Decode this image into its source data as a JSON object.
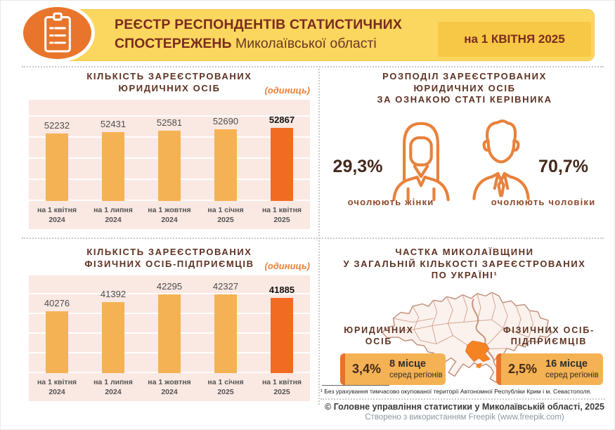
{
  "header": {
    "title_line1": "РЕЄСТР РЕСПОНДЕНТІВ СТАТИСТИЧНИХ",
    "title_line2_bold": "СПОСТЕРЕЖЕНЬ",
    "title_line2_rest": " Миколаївської області",
    "date_badge": "на 1 КВІТНЯ 2025"
  },
  "colors": {
    "banner_yellow": "#FCD75F",
    "badge_yellow": "#F7C845",
    "accent_orange": "#E8752B",
    "bar_orange": "#F5B254",
    "bar_highlight": "#F26B22",
    "panel_pink": "#FAE8E2",
    "title_brown": "#5E3222",
    "maroon": "#7B2B1E"
  },
  "chart_data": [
    {
      "type": "bar",
      "title": "КІЛЬКІСТЬ ЗАРЕЄСТРОВАНИХ ЮРИДИЧНИХ ОСІБ",
      "title_lines": [
        "КІЛЬКІСТЬ ЗАРЕЄСТРОВАНИХ",
        "ЮРИДИЧНИХ ОСІБ"
      ],
      "unit_label": "(одиниць)",
      "xlabel": "",
      "ylabel": "одиниць",
      "categories": [
        "на 1 квітня 2024",
        "на 1 липня 2024",
        "на 1 жовтня 2024",
        "на 1 січня 2025",
        "на 1 квітня 2025"
      ],
      "values": [
        52232,
        52431,
        52581,
        52690,
        52867
      ],
      "highlight_index": 4,
      "bar_color": "#F5B254",
      "highlight_color": "#F26B22",
      "grid": true,
      "legend_position": "none"
    },
    {
      "type": "bar",
      "title": "КІЛЬКІСТЬ ЗАРЕЄСТРОВАНИХ ФІЗИЧНИХ ОСІБ-ПІДПРИЄМЦІВ",
      "title_lines": [
        "КІЛЬКІСТЬ ЗАРЕЄСТРОВАНИХ",
        "ФІЗИЧНИХ ОСІБ-ПІДПРИЄМЦІВ"
      ],
      "unit_label": "(одиниць)",
      "xlabel": "",
      "ylabel": "одиниць",
      "categories": [
        "на 1 квітня 2024",
        "на 1 липня 2024",
        "на 1 жовтня 2024",
        "на 1 січня 2025",
        "на 1 квітня 2025"
      ],
      "values": [
        40276,
        41392,
        42295,
        42327,
        41885
      ],
      "highlight_index": 4,
      "bar_color": "#F5B254",
      "highlight_color": "#F26B22",
      "grid": true,
      "legend_position": "none"
    }
  ],
  "gender_panel": {
    "title_lines": [
      "РОЗПОДІЛ ЗАРЕЄСТРОВАНИХ",
      "ЮРИДИЧНИХ ОСІБ",
      "ЗА ОЗНАКОЮ СТАТІ КЕРІВНИКА"
    ],
    "female_pct": "29,3%",
    "female_label": "очолюють жінки",
    "male_pct": "70,7%",
    "male_label": "очолюють чоловіки"
  },
  "share_panel": {
    "title_lines": [
      "ЧАСТКА МИКОЛАЇВЩИНИ",
      "У ЗАГАЛЬНІЙ КІЛЬКОСТІ ЗАРЕЄСТРОВАНИХ",
      "ПО УКРАЇНІ¹"
    ],
    "legal_label_lines": [
      "ЮРИДИЧНИХ",
      "ОСІБ"
    ],
    "legal_pct": "3,4%",
    "legal_rank": "8 місце",
    "legal_rank_sub": "серед регіонів",
    "fop_label_lines": [
      "ФІЗИЧНИХ ОСІБ-",
      "ПІДПРИЄМЦІВ"
    ],
    "fop_pct": "2,5%",
    "fop_rank": "16 місце",
    "fop_rank_sub": "серед регіонів",
    "footnote": "¹ Без урахування тимчасово окупованої території Автономної Республіки Крим і м. Севастополя."
  },
  "footer": {
    "copyright": "© Головне управління статистики у Миколаївській області, 2025",
    "credit": "Створено з використанням Freepik (www.freepik.com)"
  }
}
